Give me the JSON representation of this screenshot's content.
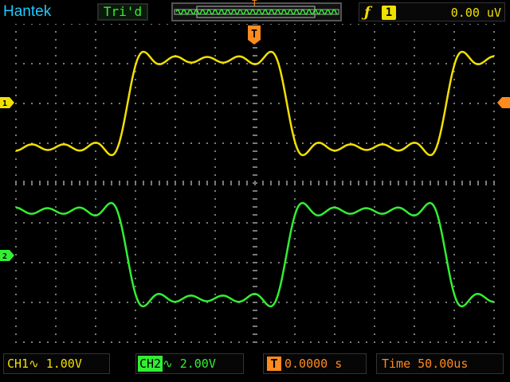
{
  "header": {
    "brand": "Hantek",
    "trigger_status": "Tri'd",
    "trigger_marker": "T",
    "trigger_source": "1",
    "trigger_level": "0.00 uV"
  },
  "markers": {
    "trigger_time": "T",
    "ch1": "1",
    "ch2": "2"
  },
  "footer": {
    "ch1": {
      "label": "CH1",
      "coupling": "∿",
      "scale": "1.00V"
    },
    "ch2": {
      "label": "CH2",
      "coupling": "∿",
      "scale": "2.00V"
    },
    "trigger_position": {
      "icon": "T",
      "value": "0.0000 s"
    },
    "time": {
      "label": "Time",
      "value": "50.00us"
    }
  },
  "colors": {
    "ch1": "#f0e000",
    "ch2": "#33ee33",
    "trigger": "#ff8a1e",
    "brand": "#1ec8ff"
  },
  "icons": [
    "trigger-slope-icon",
    "ac-coupling-icon",
    "trigger-position-icon"
  ]
}
